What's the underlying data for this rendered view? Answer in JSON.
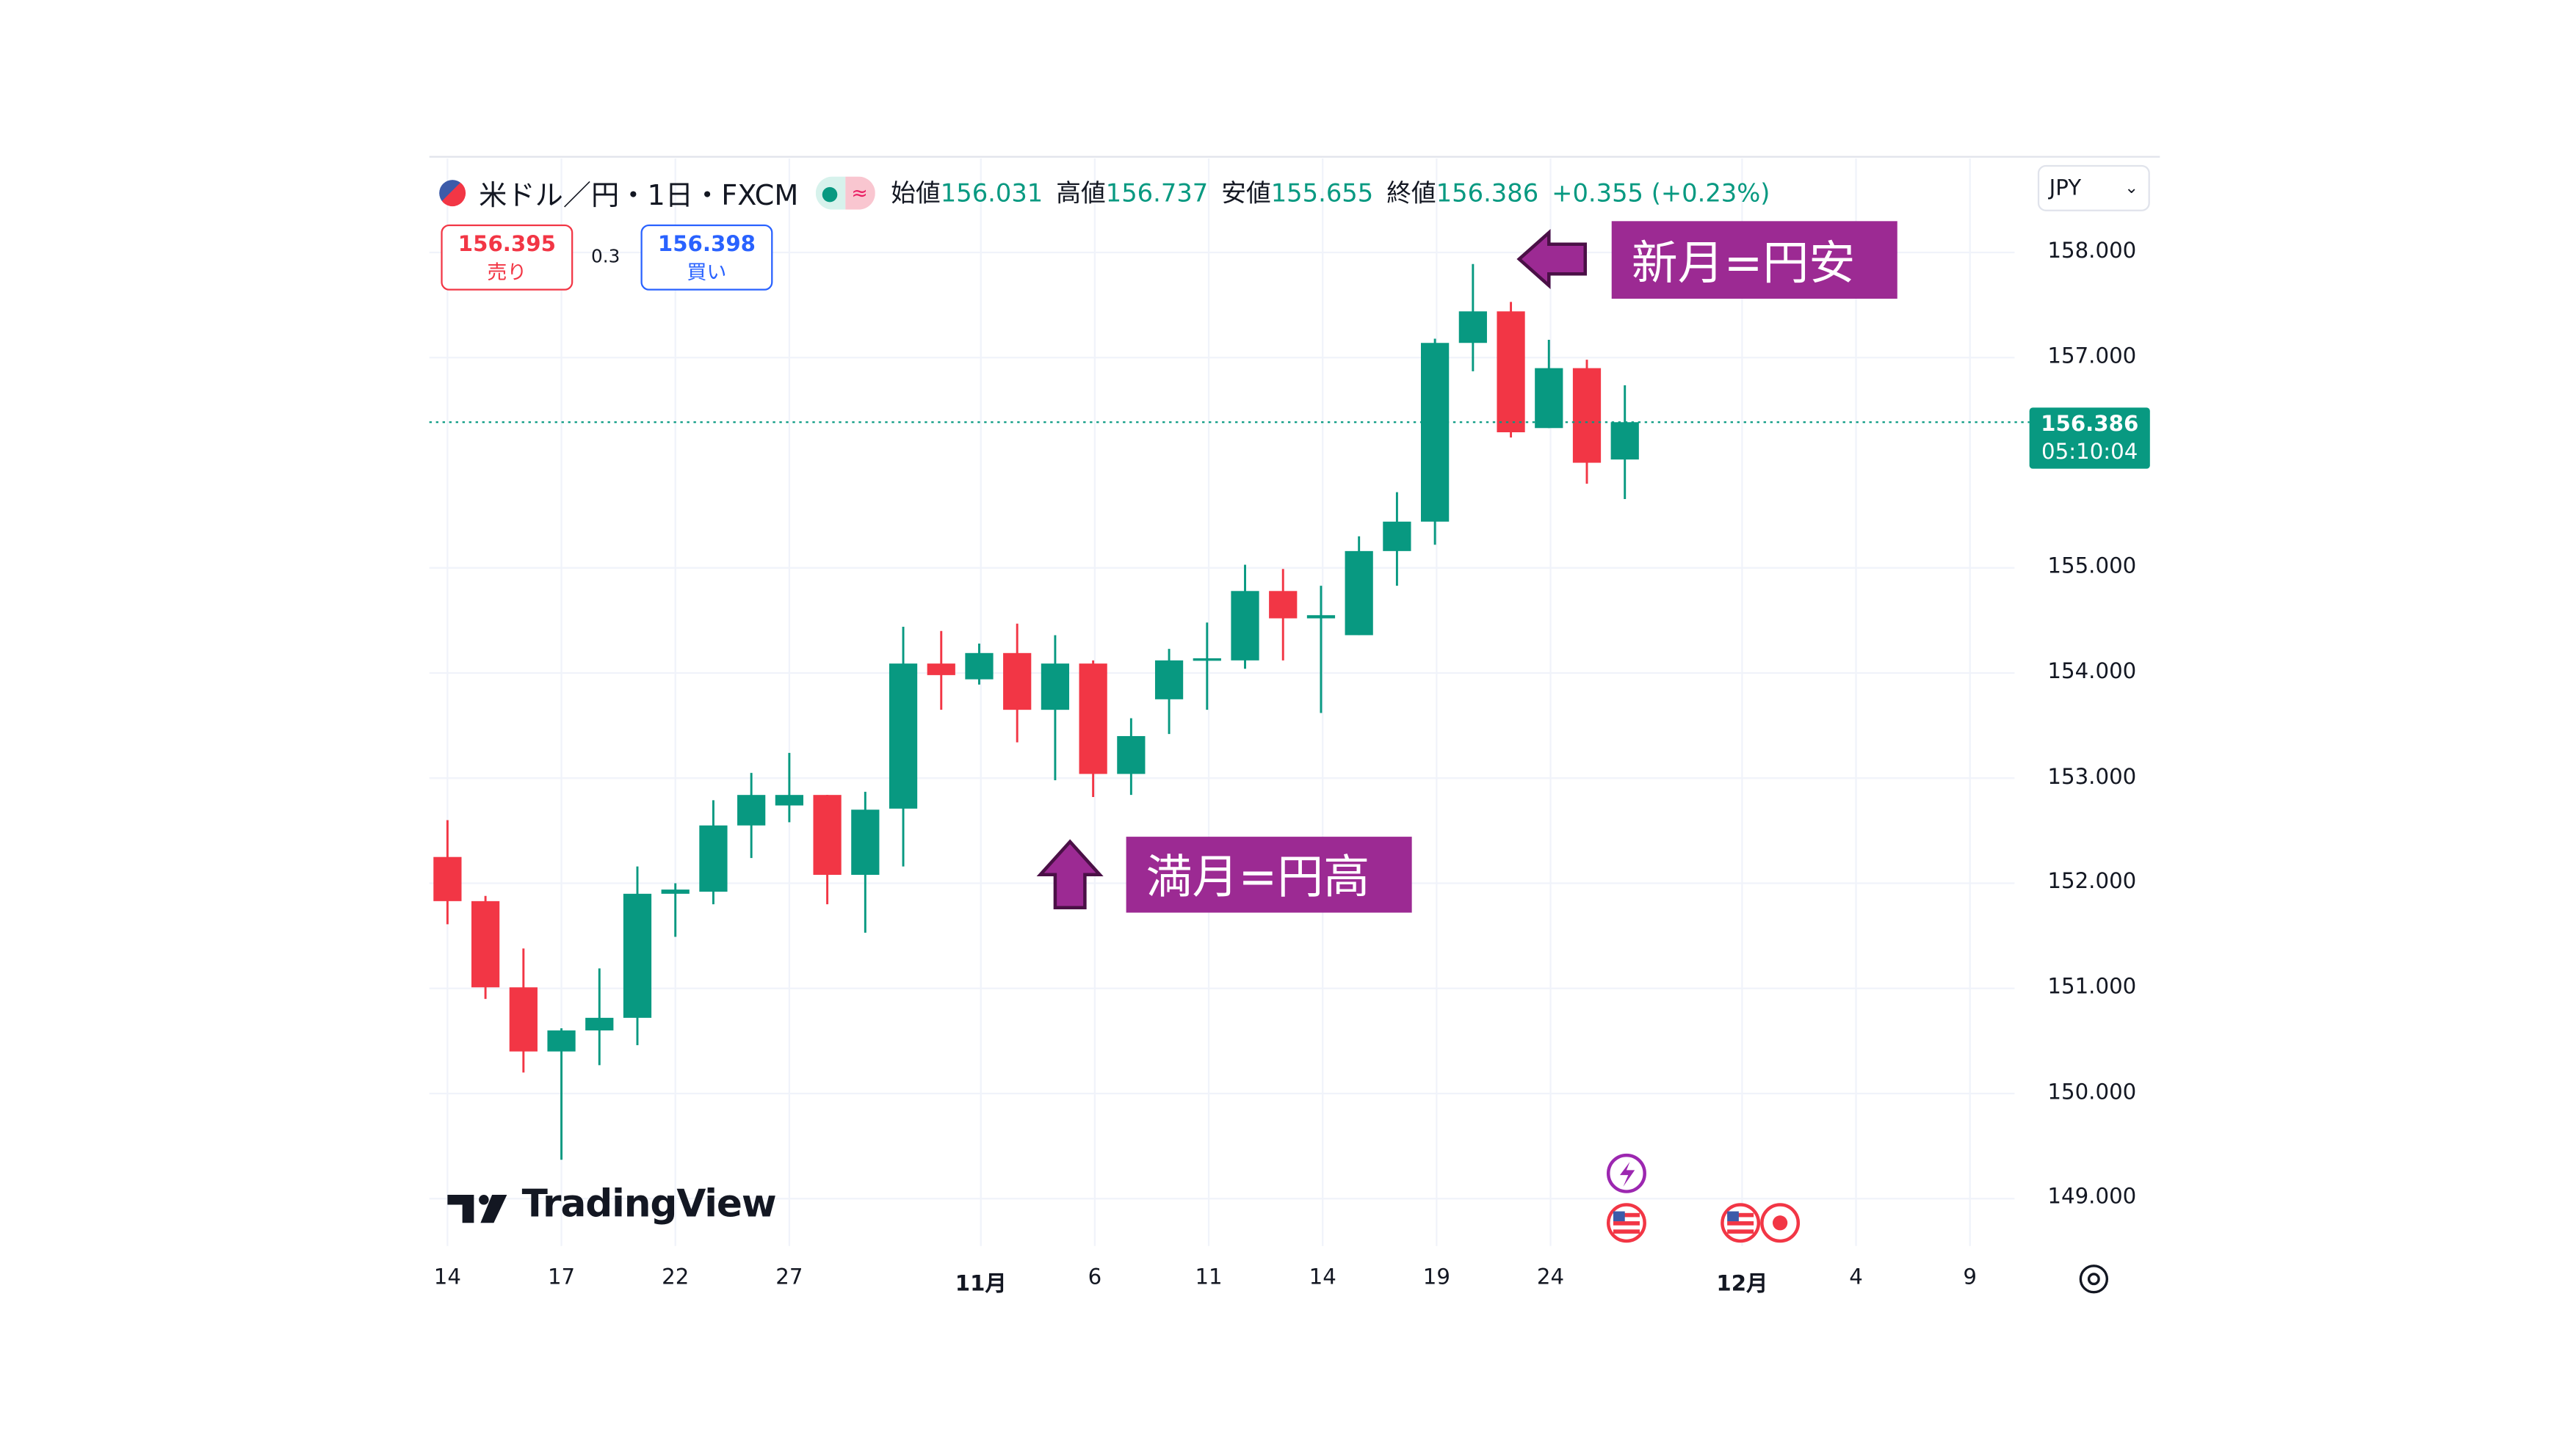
{
  "header": {
    "symbol": "米ドル／円・1日・FXCM",
    "open_label": "始値",
    "open": "156.031",
    "high_label": "高値",
    "high": "156.737",
    "low_label": "安値",
    "low": "155.655",
    "close_label": "終値",
    "close": "156.386",
    "change": "+0.355 (+0.23%)"
  },
  "trade": {
    "sell_price": "156.395",
    "sell_label": "売り",
    "spread": "0.3",
    "buy_price": "156.398",
    "buy_label": "買い"
  },
  "currency": {
    "selected": "JPY"
  },
  "last_price": {
    "price": "156.386",
    "countdown": "05:10:04"
  },
  "annotations": {
    "new_moon": "新月=円安",
    "full_moon": "満月=円高"
  },
  "logo": "TradingView",
  "colors": {
    "up": "#089981",
    "down": "#f23645",
    "annotation": "#9c2a93"
  },
  "chart_data": {
    "type": "candlestick",
    "ylim": [
      148.7,
      158.7
    ],
    "yticks": [
      "158.000",
      "157.000",
      "155.000",
      "154.000",
      "153.000",
      "152.000",
      "151.000",
      "150.000",
      "149.000"
    ],
    "xticks": [
      "14",
      "17",
      "22",
      "27",
      "11月",
      "6",
      "11",
      "14",
      "19",
      "24",
      "12月",
      "4",
      "9"
    ],
    "grid": true,
    "candles": [
      {
        "date": "10-14",
        "o": 152.25,
        "h": 152.6,
        "l": 151.61,
        "c": 151.83
      },
      {
        "date": "10-15",
        "o": 151.83,
        "h": 151.88,
        "l": 150.9,
        "c": 151.01
      },
      {
        "date": "10-16",
        "o": 151.01,
        "h": 151.38,
        "l": 150.2,
        "c": 150.4
      },
      {
        "date": "10-17",
        "o": 150.4,
        "h": 150.62,
        "l": 149.37,
        "c": 150.6
      },
      {
        "date": "10-18",
        "o": 150.6,
        "h": 151.19,
        "l": 150.27,
        "c": 150.72
      },
      {
        "date": "10-21",
        "o": 150.72,
        "h": 152.16,
        "l": 150.46,
        "c": 151.9
      },
      {
        "date": "10-22",
        "o": 151.9,
        "h": 152.0,
        "l": 151.49,
        "c": 151.94
      },
      {
        "date": "10-23",
        "o": 151.92,
        "h": 152.79,
        "l": 151.8,
        "c": 152.55
      },
      {
        "date": "10-24",
        "o": 152.55,
        "h": 153.05,
        "l": 152.24,
        "c": 152.84
      },
      {
        "date": "10-25",
        "o": 152.74,
        "h": 153.24,
        "l": 152.58,
        "c": 152.84
      },
      {
        "date": "10-28",
        "o": 152.84,
        "h": 152.84,
        "l": 151.8,
        "c": 152.08
      },
      {
        "date": "10-29",
        "o": 152.08,
        "h": 152.87,
        "l": 151.53,
        "c": 152.7
      },
      {
        "date": "10-30",
        "o": 152.71,
        "h": 154.44,
        "l": 152.16,
        "c": 154.09
      },
      {
        "date": "10-31",
        "o": 154.09,
        "h": 154.4,
        "l": 153.65,
        "c": 153.98
      },
      {
        "date": "11-01",
        "o": 153.94,
        "h": 154.28,
        "l": 153.89,
        "c": 154.19
      },
      {
        "date": "11-04",
        "o": 154.19,
        "h": 154.47,
        "l": 153.34,
        "c": 153.65
      },
      {
        "date": "11-05",
        "o": 153.65,
        "h": 154.36,
        "l": 152.98,
        "c": 154.09
      },
      {
        "date": "11-06",
        "o": 154.09,
        "h": 154.12,
        "l": 152.82,
        "c": 153.04
      },
      {
        "date": "11-07",
        "o": 153.04,
        "h": 153.57,
        "l": 152.84,
        "c": 153.4
      },
      {
        "date": "11-08",
        "o": 153.75,
        "h": 154.23,
        "l": 153.42,
        "c": 154.12
      },
      {
        "date": "11-11",
        "o": 154.12,
        "h": 154.48,
        "l": 153.65,
        "c": 154.14
      },
      {
        "date": "11-12",
        "o": 154.12,
        "h": 155.03,
        "l": 154.04,
        "c": 154.78
      },
      {
        "date": "11-13",
        "o": 154.78,
        "h": 154.99,
        "l": 154.12,
        "c": 154.52
      },
      {
        "date": "11-14",
        "o": 154.52,
        "h": 154.83,
        "l": 153.62,
        "c": 154.55
      },
      {
        "date": "11-15",
        "o": 154.36,
        "h": 155.3,
        "l": 154.36,
        "c": 155.16
      },
      {
        "date": "11-18",
        "o": 155.16,
        "h": 155.72,
        "l": 154.83,
        "c": 155.44
      },
      {
        "date": "11-19",
        "o": 155.44,
        "h": 157.18,
        "l": 155.22,
        "c": 157.14
      },
      {
        "date": "11-20",
        "o": 157.14,
        "h": 157.89,
        "l": 156.87,
        "c": 157.44
      },
      {
        "date": "11-21",
        "o": 157.44,
        "h": 157.53,
        "l": 156.24,
        "c": 156.29
      },
      {
        "date": "11-22",
        "o": 156.33,
        "h": 157.17,
        "l": 156.33,
        "c": 156.9
      },
      {
        "date": "11-25",
        "o": 156.9,
        "h": 156.98,
        "l": 155.8,
        "c": 156.0
      },
      {
        "date": "11-26",
        "o": 156.031,
        "h": 156.737,
        "l": 155.655,
        "c": 156.386
      }
    ]
  }
}
